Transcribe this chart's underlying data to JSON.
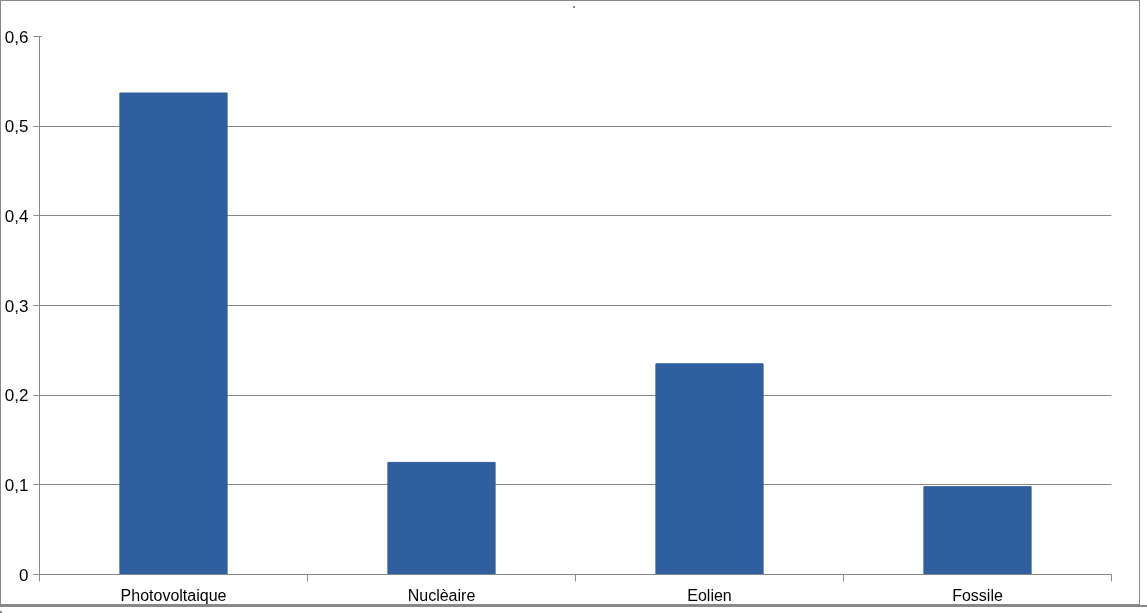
{
  "chart_data": {
    "type": "bar",
    "categories": [
      "Photovoltaique",
      "Nuclèaire",
      "Eolien",
      "Fossile"
    ],
    "values": [
      0.537,
      0.125,
      0.235,
      0.098
    ],
    "color": "#2f5f9e",
    "ylim": [
      0,
      0.6
    ],
    "yticks": [
      {
        "value": 0,
        "label": "0"
      },
      {
        "value": 0.1,
        "label": "0,1"
      },
      {
        "value": 0.2,
        "label": "0,2"
      },
      {
        "value": 0.3,
        "label": "0,3"
      },
      {
        "value": 0.4,
        "label": "0,4"
      },
      {
        "value": 0.5,
        "label": "0,5"
      },
      {
        "value": 0.6,
        "label": "0,6"
      }
    ],
    "grid": "y"
  }
}
